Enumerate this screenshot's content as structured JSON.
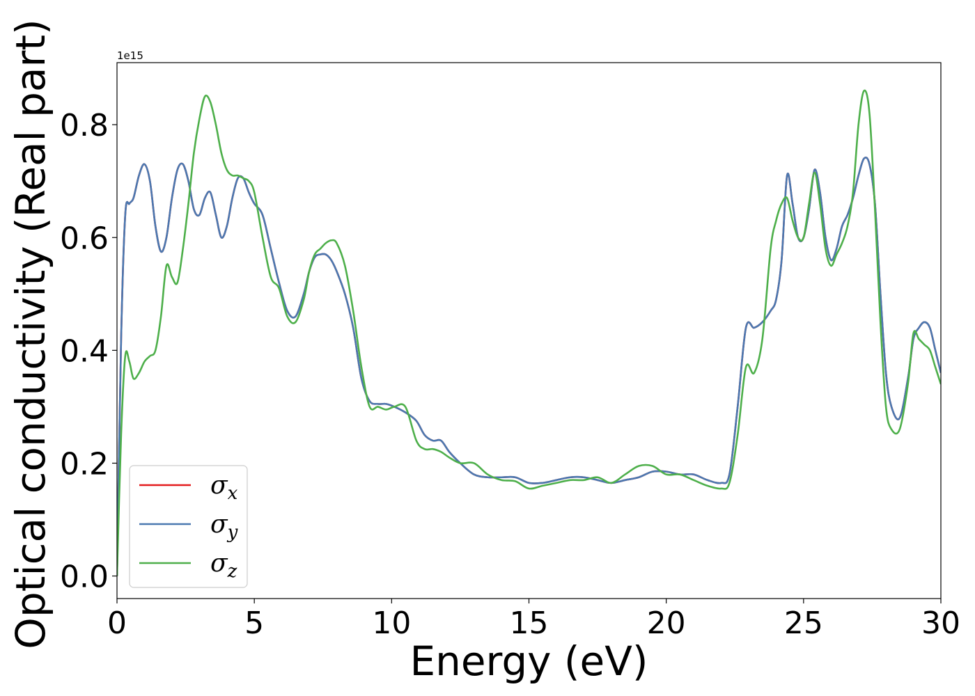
{
  "chart_data": {
    "type": "line",
    "xlabel": "Energy (eV)",
    "ylabel": "Optical conductivity (Real part)",
    "y_offset_label": "1e15",
    "xlim": [
      0,
      30
    ],
    "ylim": [
      -0.04,
      0.91
    ],
    "xticks": [
      0,
      5,
      10,
      15,
      20,
      25,
      30
    ],
    "yticks": [
      0.0,
      0.2,
      0.4,
      0.6,
      0.8
    ],
    "xtick_labels": [
      "0",
      "5",
      "10",
      "15",
      "20",
      "25",
      "30"
    ],
    "ytick_labels": [
      "0.0",
      "0.2",
      "0.4",
      "0.6",
      "0.8"
    ],
    "grid": false,
    "legend_position": "lower-left",
    "series": [
      {
        "name": "σx",
        "symbol": "σ",
        "subscript": "x",
        "color": "#e41a1c",
        "x": [
          0,
          0.15,
          0.3,
          0.45,
          0.6,
          0.8,
          1.0,
          1.2,
          1.4,
          1.6,
          1.8,
          2.0,
          2.2,
          2.4,
          2.6,
          2.8,
          3.0,
          3.2,
          3.4,
          3.6,
          3.8,
          4.0,
          4.2,
          4.4,
          4.6,
          4.8,
          5.0,
          5.3,
          5.6,
          5.9,
          6.2,
          6.5,
          6.8,
          7.0,
          7.2,
          7.4,
          7.6,
          7.8,
          8.0,
          8.3,
          8.6,
          8.9,
          9.2,
          9.5,
          9.8,
          10.1,
          10.5,
          10.9,
          11.2,
          11.5,
          11.8,
          12.1,
          12.5,
          13.0,
          13.5,
          14.0,
          14.5,
          15.0,
          15.5,
          16.0,
          16.5,
          17.0,
          17.5,
          18.0,
          18.5,
          19.0,
          19.5,
          20.0,
          20.5,
          21.0,
          21.5,
          22.0,
          22.3,
          22.6,
          22.9,
          23.2,
          23.5,
          23.8,
          24.0,
          24.2,
          24.4,
          24.6,
          24.8,
          25.0,
          25.2,
          25.4,
          25.6,
          25.8,
          26.0,
          26.2,
          26.4,
          26.6,
          26.8,
          27.0,
          27.2,
          27.4,
          27.6,
          27.8,
          28.0,
          28.2,
          28.5,
          28.8,
          29.0,
          29.2,
          29.4,
          29.6,
          29.8,
          30.0
        ],
        "y": [
          0.0,
          0.42,
          0.64,
          0.66,
          0.67,
          0.71,
          0.73,
          0.7,
          0.62,
          0.575,
          0.6,
          0.67,
          0.72,
          0.73,
          0.7,
          0.65,
          0.64,
          0.67,
          0.68,
          0.64,
          0.6,
          0.62,
          0.67,
          0.705,
          0.705,
          0.68,
          0.66,
          0.64,
          0.58,
          0.52,
          0.47,
          0.46,
          0.5,
          0.54,
          0.565,
          0.57,
          0.57,
          0.56,
          0.54,
          0.5,
          0.44,
          0.35,
          0.31,
          0.305,
          0.305,
          0.3,
          0.29,
          0.275,
          0.25,
          0.24,
          0.24,
          0.22,
          0.2,
          0.18,
          0.175,
          0.175,
          0.175,
          0.165,
          0.165,
          0.17,
          0.175,
          0.175,
          0.17,
          0.165,
          0.17,
          0.175,
          0.185,
          0.185,
          0.18,
          0.18,
          0.17,
          0.165,
          0.18,
          0.3,
          0.44,
          0.44,
          0.45,
          0.47,
          0.49,
          0.56,
          0.71,
          0.66,
          0.6,
          0.6,
          0.65,
          0.72,
          0.68,
          0.6,
          0.56,
          0.58,
          0.62,
          0.64,
          0.67,
          0.71,
          0.74,
          0.73,
          0.66,
          0.5,
          0.36,
          0.3,
          0.28,
          0.35,
          0.42,
          0.44,
          0.45,
          0.44,
          0.4,
          0.36
        ]
      },
      {
        "name": "σy",
        "symbol": "σ",
        "subscript": "y",
        "color": "#4a78b0",
        "x": [
          0,
          0.15,
          0.3,
          0.45,
          0.6,
          0.8,
          1.0,
          1.2,
          1.4,
          1.6,
          1.8,
          2.0,
          2.2,
          2.4,
          2.6,
          2.8,
          3.0,
          3.2,
          3.4,
          3.6,
          3.8,
          4.0,
          4.2,
          4.4,
          4.6,
          4.8,
          5.0,
          5.3,
          5.6,
          5.9,
          6.2,
          6.5,
          6.8,
          7.0,
          7.2,
          7.4,
          7.6,
          7.8,
          8.0,
          8.3,
          8.6,
          8.9,
          9.2,
          9.5,
          9.8,
          10.1,
          10.5,
          10.9,
          11.2,
          11.5,
          11.8,
          12.1,
          12.5,
          13.0,
          13.5,
          14.0,
          14.5,
          15.0,
          15.5,
          16.0,
          16.5,
          17.0,
          17.5,
          18.0,
          18.5,
          19.0,
          19.5,
          20.0,
          20.5,
          21.0,
          21.5,
          22.0,
          22.3,
          22.6,
          22.9,
          23.2,
          23.5,
          23.8,
          24.0,
          24.2,
          24.4,
          24.6,
          24.8,
          25.0,
          25.2,
          25.4,
          25.6,
          25.8,
          26.0,
          26.2,
          26.4,
          26.6,
          26.8,
          27.0,
          27.2,
          27.4,
          27.6,
          27.8,
          28.0,
          28.2,
          28.5,
          28.8,
          29.0,
          29.2,
          29.4,
          29.6,
          29.8,
          30.0
        ],
        "y": [
          0.0,
          0.42,
          0.64,
          0.66,
          0.67,
          0.71,
          0.73,
          0.7,
          0.62,
          0.575,
          0.6,
          0.67,
          0.72,
          0.73,
          0.7,
          0.65,
          0.64,
          0.67,
          0.68,
          0.64,
          0.6,
          0.62,
          0.67,
          0.705,
          0.705,
          0.68,
          0.66,
          0.64,
          0.58,
          0.52,
          0.47,
          0.46,
          0.5,
          0.54,
          0.565,
          0.57,
          0.57,
          0.56,
          0.54,
          0.5,
          0.44,
          0.35,
          0.31,
          0.305,
          0.305,
          0.3,
          0.29,
          0.275,
          0.25,
          0.24,
          0.24,
          0.22,
          0.2,
          0.18,
          0.175,
          0.175,
          0.175,
          0.165,
          0.165,
          0.17,
          0.175,
          0.175,
          0.17,
          0.165,
          0.17,
          0.175,
          0.185,
          0.185,
          0.18,
          0.18,
          0.17,
          0.165,
          0.18,
          0.3,
          0.44,
          0.44,
          0.45,
          0.47,
          0.49,
          0.56,
          0.71,
          0.66,
          0.6,
          0.6,
          0.65,
          0.72,
          0.68,
          0.6,
          0.56,
          0.58,
          0.62,
          0.64,
          0.67,
          0.71,
          0.74,
          0.73,
          0.66,
          0.5,
          0.36,
          0.3,
          0.28,
          0.35,
          0.42,
          0.44,
          0.45,
          0.44,
          0.4,
          0.36
        ]
      },
      {
        "name": "σz",
        "symbol": "σ",
        "subscript": "z",
        "color": "#4daf4a",
        "x": [
          0,
          0.15,
          0.3,
          0.45,
          0.6,
          0.8,
          1.0,
          1.2,
          1.4,
          1.6,
          1.8,
          2.0,
          2.2,
          2.4,
          2.6,
          2.8,
          3.0,
          3.2,
          3.4,
          3.6,
          3.8,
          4.0,
          4.2,
          4.4,
          4.6,
          4.8,
          5.0,
          5.3,
          5.6,
          5.9,
          6.2,
          6.5,
          6.8,
          7.0,
          7.2,
          7.4,
          7.6,
          7.8,
          8.0,
          8.3,
          8.6,
          8.9,
          9.2,
          9.5,
          9.8,
          10.1,
          10.5,
          10.9,
          11.2,
          11.5,
          11.8,
          12.1,
          12.5,
          13.0,
          13.5,
          14.0,
          14.5,
          15.0,
          15.5,
          16.0,
          16.5,
          17.0,
          17.5,
          18.0,
          18.5,
          19.0,
          19.5,
          20.0,
          20.5,
          21.0,
          21.5,
          22.0,
          22.3,
          22.6,
          22.9,
          23.2,
          23.5,
          23.8,
          24.0,
          24.2,
          24.4,
          24.6,
          24.8,
          25.0,
          25.2,
          25.4,
          25.6,
          25.8,
          26.0,
          26.2,
          26.4,
          26.6,
          26.8,
          27.0,
          27.2,
          27.4,
          27.6,
          27.8,
          28.0,
          28.2,
          28.5,
          28.8,
          29.0,
          29.2,
          29.4,
          29.6,
          29.8,
          30.0
        ],
        "y": [
          0.0,
          0.25,
          0.39,
          0.38,
          0.35,
          0.36,
          0.38,
          0.39,
          0.4,
          0.46,
          0.55,
          0.53,
          0.52,
          0.58,
          0.66,
          0.75,
          0.81,
          0.85,
          0.84,
          0.8,
          0.75,
          0.72,
          0.71,
          0.71,
          0.705,
          0.7,
          0.68,
          0.6,
          0.53,
          0.51,
          0.46,
          0.45,
          0.49,
          0.54,
          0.57,
          0.58,
          0.59,
          0.595,
          0.59,
          0.55,
          0.47,
          0.37,
          0.3,
          0.3,
          0.295,
          0.3,
          0.3,
          0.24,
          0.225,
          0.225,
          0.22,
          0.21,
          0.2,
          0.2,
          0.18,
          0.17,
          0.168,
          0.155,
          0.16,
          0.165,
          0.17,
          0.17,
          0.175,
          0.165,
          0.18,
          0.195,
          0.195,
          0.18,
          0.18,
          0.17,
          0.16,
          0.155,
          0.165,
          0.25,
          0.37,
          0.36,
          0.42,
          0.58,
          0.63,
          0.66,
          0.67,
          0.63,
          0.6,
          0.6,
          0.66,
          0.715,
          0.66,
          0.58,
          0.55,
          0.57,
          0.59,
          0.62,
          0.68,
          0.8,
          0.86,
          0.82,
          0.65,
          0.45,
          0.3,
          0.26,
          0.26,
          0.34,
          0.43,
          0.42,
          0.41,
          0.4,
          0.37,
          0.34
        ]
      }
    ]
  }
}
